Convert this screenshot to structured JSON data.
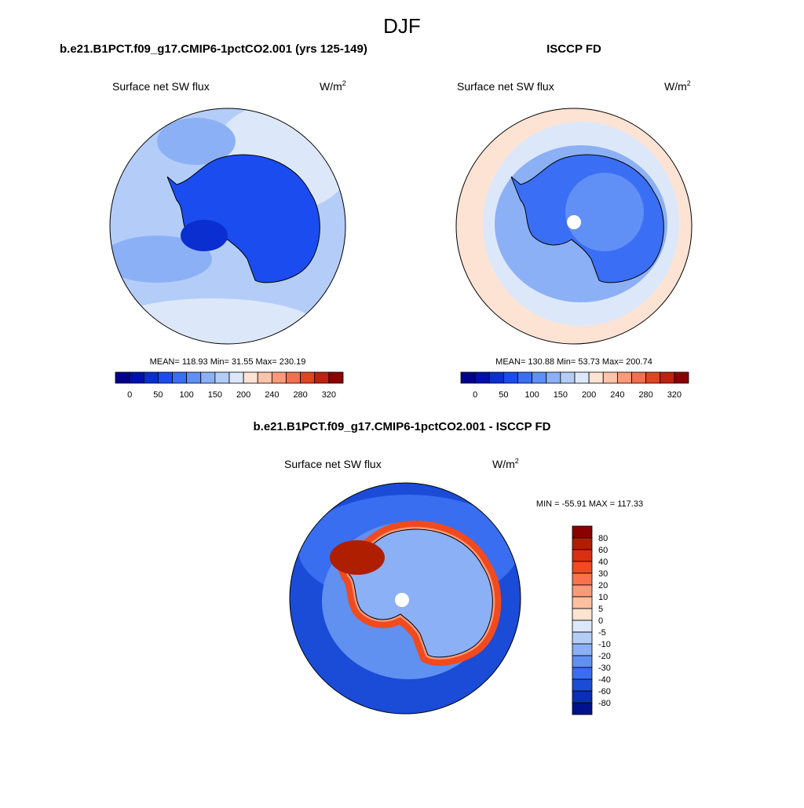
{
  "title": "DJF",
  "panels": [
    {
      "title": "b.e21.B1PCT.f09_g17.CMIP6-1pctCO2.001 (yrs 125-149)",
      "variable": "Surface net SW flux",
      "units": "W/m",
      "units_power": "2",
      "stats": "MEAN= 118.93  Min=  31.55  Max= 230.19"
    },
    {
      "title": "ISCCP FD",
      "variable": "Surface net SW flux",
      "units": "W/m",
      "units_power": "2",
      "stats": "MEAN= 130.88  Min=  53.73  Max= 200.74"
    },
    {
      "title": "b.e21.B1PCT.f09_g17.CMIP6-1pctCO2.001 - ISCCP FD",
      "variable": "Surface net SW flux",
      "units": "W/m",
      "units_power": "2",
      "stats": "MIN = -55.91 MAX = 117.33"
    }
  ],
  "colorbars": [
    {
      "colors": [
        "#00008b",
        "#0010b0",
        "#0a2ed0",
        "#1a4cf0",
        "#3a6ef5",
        "#6090f5",
        "#8cb0f5",
        "#b4cdf8",
        "#dce8fa",
        "#fde3d4",
        "#fcc4aa",
        "#f99a78",
        "#f0704f",
        "#e04420",
        "#c02010",
        "#8b0000"
      ],
      "labels": [
        "0",
        "50",
        "100",
        "150",
        "200",
        "240",
        "280",
        "320"
      ]
    },
    {
      "colors": [
        "#00008b",
        "#0010b0",
        "#0a2ed0",
        "#1a4cf0",
        "#3a6ef5",
        "#6090f5",
        "#8cb0f5",
        "#b4cdf8",
        "#dce8fa",
        "#fde3d4",
        "#fcc4aa",
        "#f99a78",
        "#f0704f",
        "#e04420",
        "#c02010",
        "#8b0000"
      ],
      "labels": [
        "0",
        "50",
        "100",
        "150",
        "200",
        "240",
        "280",
        "320"
      ]
    },
    {
      "colors": [
        "#8b0000",
        "#b01e00",
        "#d83010",
        "#f04a1e",
        "#f8734d",
        "#fa9a78",
        "#fcc0a0",
        "#fde3d0",
        "#dce8fa",
        "#b4cdf8",
        "#8cb0f5",
        "#6090f0",
        "#3a6ef0",
        "#1a4cd8",
        "#0a2eb8",
        "#00128b"
      ],
      "labels": [
        "80",
        "60",
        "40",
        "30",
        "20",
        "10",
        "5",
        "0",
        "-5",
        "-10",
        "-20",
        "-30",
        "-40",
        "-60",
        "-80"
      ]
    }
  ]
}
